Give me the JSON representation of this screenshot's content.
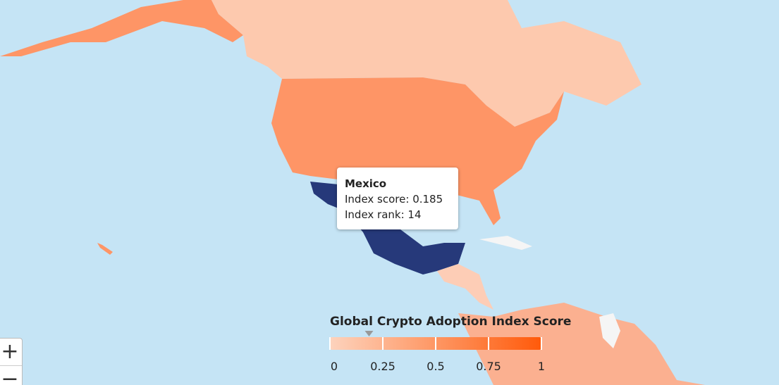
{
  "tooltip": {
    "name": "Mexico",
    "lines": [
      "Index score: 0.185",
      "Index rank: 14"
    ]
  },
  "legend": {
    "title": "Global Crypto Adoption Index Score",
    "range": [
      0,
      1
    ],
    "ticks": [
      0,
      0.25,
      0.5,
      0.75,
      1
    ],
    "marker": 0.185,
    "colors": [
      "#fdd3bd",
      "#ff5a0a"
    ]
  },
  "controls": {
    "zoom_in": "+",
    "zoom_out": "−"
  }
}
